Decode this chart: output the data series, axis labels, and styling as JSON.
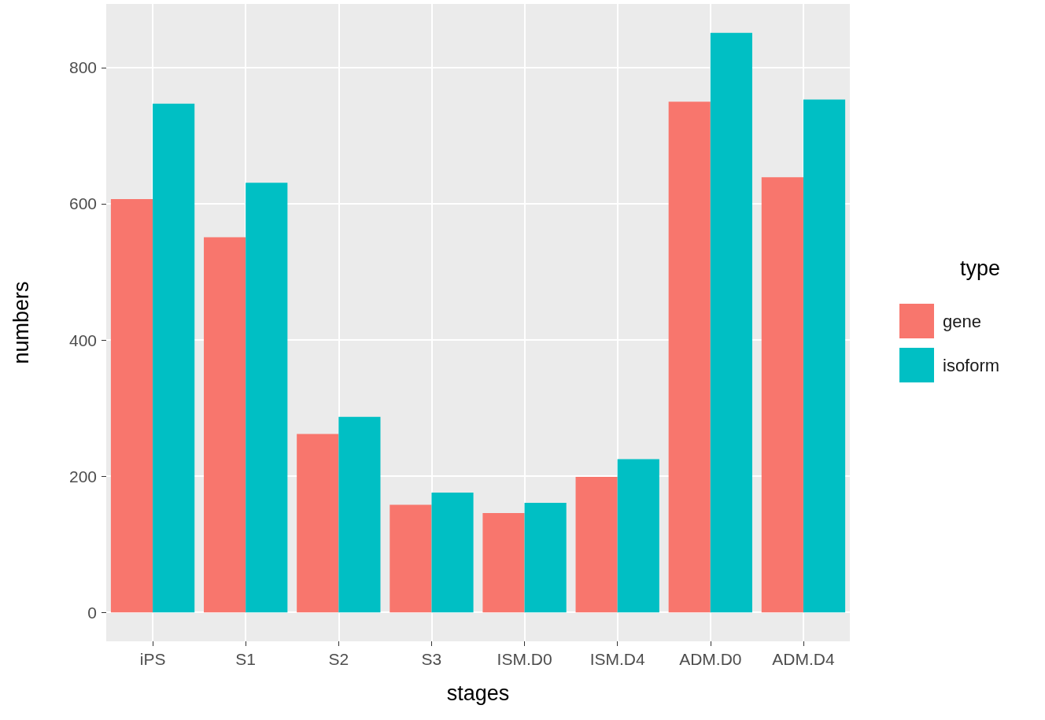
{
  "chart_data": {
    "type": "bar",
    "xlabel": "stages",
    "ylabel": "numbers",
    "legend_title": "type",
    "categories": [
      "iPS",
      "S1",
      "S2",
      "S3",
      "ISM.D0",
      "ISM.D4",
      "ADM.D0",
      "ADM.D4"
    ],
    "series": [
      {
        "name": "gene",
        "color": "#f8766d",
        "values": [
          607,
          551,
          262,
          158,
          146,
          199,
          750,
          639
        ]
      },
      {
        "name": "isoform",
        "color": "#00bfc4",
        "values": [
          747,
          631,
          287,
          176,
          161,
          225,
          851,
          753
        ]
      }
    ],
    "ylim": [
      -42.5,
      893.5
    ],
    "yticks": [
      0,
      200,
      400,
      600,
      800
    ],
    "grid": true,
    "legend": "right"
  }
}
